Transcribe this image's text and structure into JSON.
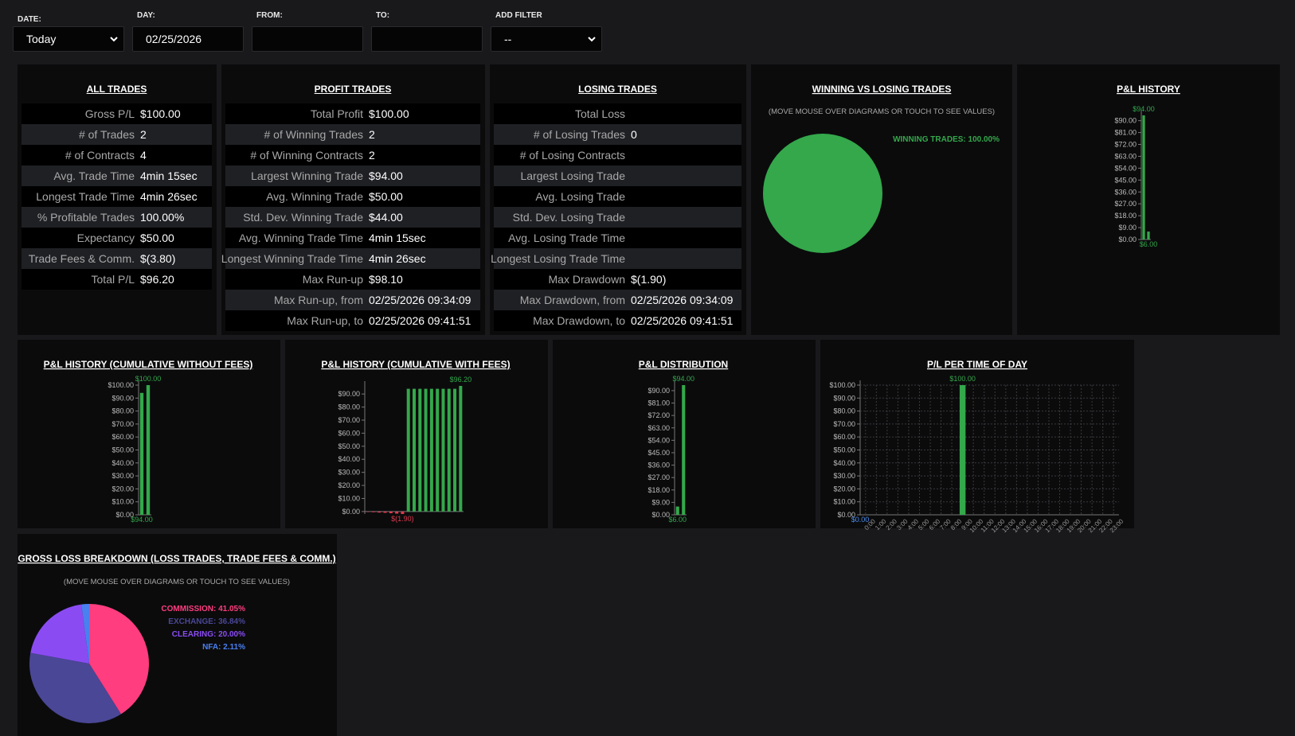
{
  "filters": [
    {
      "label": "DATE:",
      "value": "Today"
    },
    {
      "label": "DAY:",
      "value": "02/25/2026"
    },
    {
      "label": "FROM:"
    },
    {
      "label": "TO:"
    },
    {
      "label": "ADD FILTER",
      "value": "--"
    }
  ],
  "tables": [
    {
      "title": "ALL TRADES",
      "rows": [
        [
          "Gross P/L",
          "$100.00"
        ],
        [
          "# of Trades",
          "2"
        ],
        [
          "# of Contracts",
          "4"
        ],
        [
          "Avg. Trade Time",
          "4min 15sec"
        ],
        [
          "Longest Trade Time",
          "4min 26sec"
        ],
        [
          "% Profitable Trades",
          "100.00%"
        ],
        [
          "Expectancy",
          "$50.00"
        ],
        [
          "Trade Fees & Comm.",
          "$(3.80)"
        ],
        [
          "Total P/L",
          "$96.20"
        ]
      ]
    },
    {
      "title": "PROFIT TRADES",
      "rows": [
        [
          "Total Profit",
          "$100.00"
        ],
        [
          "# of Winning Trades",
          "2"
        ],
        [
          "# of Winning Contracts",
          "2"
        ],
        [
          "Largest Winning Trade",
          "$94.00"
        ],
        [
          "Avg. Winning Trade",
          "$50.00"
        ],
        [
          "Std. Dev. Winning Trade",
          "$44.00"
        ],
        [
          "Avg. Winning Trade Time",
          "4min 15sec"
        ],
        [
          "Longest Winning Trade Time",
          "4min 26sec"
        ],
        [
          "Max Run-up",
          "$98.10"
        ],
        [
          "Max Run-up, from",
          "02/25/2026 09:34:09"
        ],
        [
          "Max Run-up, to",
          "02/25/2026 09:41:51"
        ]
      ]
    },
    {
      "title": "LOSING TRADES",
      "rows": [
        [
          "Total Loss"
        ],
        [
          "# of Losing Trades",
          "0"
        ],
        [
          "# of Losing Contracts"
        ],
        [
          "Largest Losing Trade"
        ],
        [
          "Avg. Losing Trade"
        ],
        [
          "Std. Dev. Losing Trade"
        ],
        [
          "Avg. Losing Trade Time"
        ],
        [
          "Longest Losing Trade Time"
        ],
        [
          "Max Drawdown",
          "$(1.90)"
        ],
        [
          "Max Drawdown, from",
          "02/25/2026 09:34:09"
        ],
        [
          "Max Drawdown, to",
          "02/25/2026 09:41:51"
        ]
      ]
    }
  ],
  "charts": [
    {
      "type": "pie",
      "title": "WINNING VS LOSING TRADES",
      "subtitle": "(MOVE MOUSE OVER DIAGRAMS OR TOUCH TO SEE VALUES)",
      "slices": [
        {
          "label": "WINNING TRADES: 100.00%",
          "value": 100,
          "color": "#34a84b"
        }
      ]
    },
    {
      "type": "bar",
      "title": "P&L HISTORY",
      "values": [
        94,
        6
      ],
      "color": "#34a84b",
      "ylim": [
        0,
        94
      ],
      "yticks": [
        {
          "value": 0,
          "label": "$0.00"
        },
        {
          "value": 9,
          "label": "$9.00"
        },
        {
          "value": 18,
          "label": "$18.00"
        },
        {
          "value": 27,
          "label": "$27.00"
        },
        {
          "value": 36,
          "label": "$36.00"
        },
        {
          "value": 45,
          "label": "$45.00"
        },
        {
          "value": 54,
          "label": "$54.00"
        },
        {
          "value": 63,
          "label": "$63.00"
        },
        {
          "value": 72,
          "label": "$72.00"
        },
        {
          "value": 81,
          "label": "$81.00"
        },
        {
          "value": 90,
          "label": "$90.00"
        }
      ],
      "max_label": "$94.00",
      "min_label": "$6.00"
    },
    {
      "type": "bar",
      "title": "P&L HISTORY (CUMULATIVE WITHOUT FEES)",
      "values": [
        94,
        100
      ],
      "color": "#34a84b",
      "ylim": [
        0,
        100
      ],
      "yticks": [
        {
          "value": 0,
          "label": "$0.00"
        },
        {
          "value": 10,
          "label": "$10.00"
        },
        {
          "value": 20,
          "label": "$20.00"
        },
        {
          "value": 30,
          "label": "$30.00"
        },
        {
          "value": 40,
          "label": "$40.00"
        },
        {
          "value": 50,
          "label": "$50.00"
        },
        {
          "value": 60,
          "label": "$60.00"
        },
        {
          "value": 70,
          "label": "$70.00"
        },
        {
          "value": 80,
          "label": "$80.00"
        },
        {
          "value": 90,
          "label": "$90.00"
        },
        {
          "value": 100,
          "label": "$100.00"
        }
      ],
      "max_label": "$100.00",
      "min_label": "$94.00"
    },
    {
      "type": "bar",
      "title": "P&L HISTORY (CUMULATIVE WITH FEES)",
      "values": [
        -0.3,
        -0.5,
        -0.8,
        -1.0,
        -1.3,
        -1.6,
        -1.9,
        94,
        94,
        94,
        94,
        94,
        94,
        94,
        94,
        94,
        96.2
      ],
      "color": "#34a84b",
      "negative_color": "#e03a4e",
      "ylim": [
        -1.9,
        96.2
      ],
      "yticks": [
        {
          "value": 0,
          "label": "$0.00"
        },
        {
          "value": 10,
          "label": "$10.00"
        },
        {
          "value": 20,
          "label": "$20.00"
        },
        {
          "value": 30,
          "label": "$30.00"
        },
        {
          "value": 40,
          "label": "$40.00"
        },
        {
          "value": 50,
          "label": "$50.00"
        },
        {
          "value": 60,
          "label": "$60.00"
        },
        {
          "value": 70,
          "label": "$70.00"
        },
        {
          "value": 80,
          "label": "$80.00"
        },
        {
          "value": 90,
          "label": "$90.00"
        }
      ],
      "max_label": "$96.20",
      "min_label": "$(1.90)"
    },
    {
      "type": "bar",
      "title": "P&L DISTRIBUTION",
      "values": [
        6,
        94
      ],
      "color": "#34a84b",
      "ylim": [
        0,
        94
      ],
      "yticks": [
        {
          "value": 0,
          "label": "$0.00"
        },
        {
          "value": 9,
          "label": "$9.00"
        },
        {
          "value": 18,
          "label": "$18.00"
        },
        {
          "value": 27,
          "label": "$27.00"
        },
        {
          "value": 36,
          "label": "$36.00"
        },
        {
          "value": 45,
          "label": "$45.00"
        },
        {
          "value": 54,
          "label": "$54.00"
        },
        {
          "value": 63,
          "label": "$63.00"
        },
        {
          "value": 72,
          "label": "$72.00"
        },
        {
          "value": 81,
          "label": "$81.00"
        },
        {
          "value": 90,
          "label": "$90.00"
        }
      ],
      "max_label": "$94.00",
      "min_label": "$6.00"
    },
    {
      "type": "bar",
      "title": "P/L PER TIME OF DAY",
      "grid": true,
      "categories": [
        "0:00",
        "1:00",
        "2:00",
        "3:00",
        "4:00",
        "5:00",
        "6:00",
        "7:00",
        "8:00",
        "9:00",
        "10:00",
        "11:00",
        "12:00",
        "13:00",
        "14:00",
        "15:00",
        "16:00",
        "17:00",
        "18:00",
        "19:00",
        "20:00",
        "21:00",
        "22:00",
        "23:00"
      ],
      "values": [
        0,
        0,
        0,
        0,
        0,
        0,
        0,
        0,
        0,
        100,
        0,
        0,
        0,
        0,
        0,
        0,
        0,
        0,
        0,
        0,
        0,
        0,
        0,
        0
      ],
      "color": "#34a84b",
      "ylim": [
        0,
        100
      ],
      "yticks": [
        {
          "value": 0,
          "label": "$0.00"
        },
        {
          "value": 10,
          "label": "$10.00"
        },
        {
          "value": 20,
          "label": "$20.00"
        },
        {
          "value": 30,
          "label": "$30.00"
        },
        {
          "value": 40,
          "label": "$40.00"
        },
        {
          "value": 50,
          "label": "$50.00"
        },
        {
          "value": 60,
          "label": "$60.00"
        },
        {
          "value": 70,
          "label": "$70.00"
        },
        {
          "value": 80,
          "label": "$80.00"
        },
        {
          "value": 90,
          "label": "$90.00"
        },
        {
          "value": 100,
          "label": "$100.00"
        }
      ],
      "max_label": "$100.00",
      "min_label": "$0.00",
      "min_label_color": "#4a8ff0"
    },
    {
      "type": "pie",
      "title": "GROSS LOSS BREAKDOWN (LOSS TRADES, TRADE FEES & COMM.)",
      "subtitle": "(MOVE MOUSE OVER DIAGRAMS OR TOUCH TO SEE VALUES)",
      "slices": [
        {
          "label": "COMMISSION: 41.05%",
          "value": 41.05,
          "color": "#ff3d7f"
        },
        {
          "label": "EXCHANGE: 36.84%",
          "value": 36.84,
          "color": "#4a4796"
        },
        {
          "label": "CLEARING: 20.00%",
          "value": 20.0,
          "color": "#8a4cf2"
        },
        {
          "label": "NFA: 2.11%",
          "value": 2.11,
          "color": "#4a80f0"
        }
      ]
    }
  ]
}
